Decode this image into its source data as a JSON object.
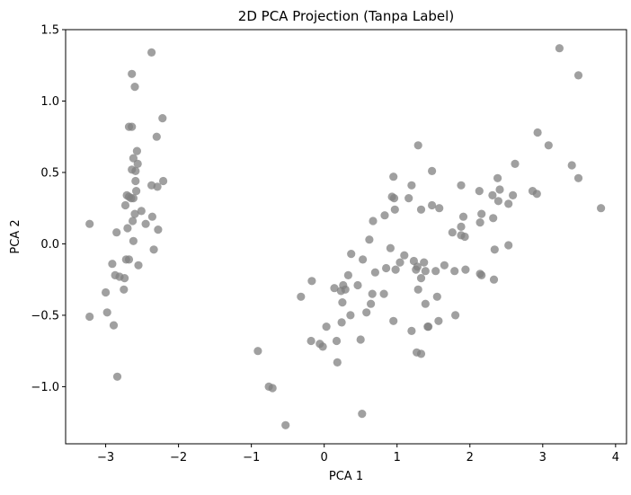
{
  "chart_data": {
    "type": "scatter",
    "title": "2D PCA Projection (Tanpa Label)",
    "xlabel": "PCA 1",
    "ylabel": "PCA 2",
    "xlim": [
      -3.55,
      4.15
    ],
    "ylim": [
      -1.4,
      1.5
    ],
    "xticks": [
      -3,
      -2,
      -1,
      0,
      1,
      2,
      3,
      4
    ],
    "yticks": [
      1.5,
      1.0,
      0.5,
      0.0,
      -0.5,
      -1.0
    ],
    "xtick_labels": [
      "−3",
      "−2",
      "−1",
      "0",
      "1",
      "2",
      "3",
      "4"
    ],
    "ytick_labels": [
      "1.5",
      "1.0",
      "0.5",
      "0.0",
      "−0.5",
      "−1.0"
    ],
    "grid": false,
    "marker_color": "#808080",
    "marker_alpha": 0.75,
    "series": [
      {
        "points": [
          [
            -2.37,
            1.34
          ],
          [
            -2.64,
            1.19
          ],
          [
            -2.6,
            1.1
          ],
          [
            -2.68,
            0.82
          ],
          [
            -2.64,
            0.82
          ],
          [
            -2.22,
            0.88
          ],
          [
            -2.3,
            0.75
          ],
          [
            -2.57,
            0.65
          ],
          [
            -2.62,
            0.6
          ],
          [
            -2.56,
            0.56
          ],
          [
            -2.64,
            0.52
          ],
          [
            -2.59,
            0.51
          ],
          [
            -2.59,
            0.44
          ],
          [
            -2.37,
            0.41
          ],
          [
            -2.29,
            0.4
          ],
          [
            -2.21,
            0.44
          ],
          [
            -2.71,
            0.34
          ],
          [
            -2.68,
            0.33
          ],
          [
            -2.65,
            0.32
          ],
          [
            -2.62,
            0.32
          ],
          [
            -2.58,
            0.37
          ],
          [
            -2.73,
            0.27
          ],
          [
            -2.51,
            0.23
          ],
          [
            -2.6,
            0.21
          ],
          [
            -2.36,
            0.19
          ],
          [
            -2.63,
            0.16
          ],
          [
            -2.28,
            0.1
          ],
          [
            -2.45,
            0.14
          ],
          [
            -2.7,
            0.11
          ],
          [
            -2.85,
            0.08
          ],
          [
            -3.22,
            0.14
          ],
          [
            -2.62,
            0.02
          ],
          [
            -2.34,
            -0.04
          ],
          [
            -2.72,
            -0.11
          ],
          [
            -2.68,
            -0.11
          ],
          [
            -2.91,
            -0.14
          ],
          [
            -2.55,
            -0.15
          ],
          [
            -2.87,
            -0.22
          ],
          [
            -2.81,
            -0.23
          ],
          [
            -2.74,
            -0.24
          ],
          [
            -2.75,
            -0.32
          ],
          [
            -3.0,
            -0.34
          ],
          [
            -2.98,
            -0.48
          ],
          [
            -3.22,
            -0.51
          ],
          [
            -2.89,
            -0.57
          ],
          [
            -2.84,
            -0.93
          ],
          [
            3.23,
            1.37
          ],
          [
            3.49,
            1.18
          ],
          [
            2.93,
            0.78
          ],
          [
            3.08,
            0.69
          ],
          [
            3.4,
            0.55
          ],
          [
            3.49,
            0.46
          ],
          [
            3.8,
            0.25
          ],
          [
            2.62,
            0.56
          ],
          [
            2.38,
            0.46
          ],
          [
            2.86,
            0.37
          ],
          [
            2.92,
            0.35
          ],
          [
            2.59,
            0.34
          ],
          [
            2.41,
            0.38
          ],
          [
            2.31,
            0.34
          ],
          [
            2.13,
            0.37
          ],
          [
            1.88,
            0.41
          ],
          [
            2.53,
            0.28
          ],
          [
            2.39,
            0.3
          ],
          [
            2.16,
            0.21
          ],
          [
            2.32,
            0.18
          ],
          [
            1.91,
            0.19
          ],
          [
            2.14,
            0.15
          ],
          [
            1.88,
            0.12
          ],
          [
            1.76,
            0.08
          ],
          [
            1.88,
            0.06
          ],
          [
            1.93,
            0.05
          ],
          [
            2.53,
            -0.01
          ],
          [
            2.34,
            -0.04
          ],
          [
            2.14,
            -0.21
          ],
          [
            2.16,
            -0.22
          ],
          [
            1.94,
            -0.18
          ],
          [
            2.33,
            -0.25
          ],
          [
            1.79,
            -0.19
          ],
          [
            1.48,
            0.51
          ],
          [
            1.29,
            0.69
          ],
          [
            1.2,
            0.41
          ],
          [
            0.93,
            0.33
          ],
          [
            0.96,
            0.32
          ],
          [
            0.95,
            0.47
          ],
          [
            1.16,
            0.32
          ],
          [
            1.58,
            0.25
          ],
          [
            1.33,
            0.24
          ],
          [
            1.48,
            0.27
          ],
          [
            0.97,
            0.24
          ],
          [
            0.83,
            0.2
          ],
          [
            0.67,
            0.16
          ],
          [
            0.62,
            0.03
          ],
          [
            0.91,
            -0.03
          ],
          [
            1.1,
            -0.08
          ],
          [
            1.23,
            -0.12
          ],
          [
            1.04,
            -0.13
          ],
          [
            1.37,
            -0.13
          ],
          [
            1.28,
            -0.16
          ],
          [
            1.65,
            -0.15
          ],
          [
            1.53,
            -0.19
          ],
          [
            1.26,
            -0.18
          ],
          [
            1.39,
            -0.19
          ],
          [
            0.98,
            -0.18
          ],
          [
            0.85,
            -0.17
          ],
          [
            0.53,
            -0.11
          ],
          [
            0.37,
            -0.07
          ],
          [
            0.7,
            -0.2
          ],
          [
            0.33,
            -0.22
          ],
          [
            0.46,
            -0.29
          ],
          [
            0.26,
            -0.29
          ],
          [
            0.29,
            -0.32
          ],
          [
            0.14,
            -0.31
          ],
          [
            0.23,
            -0.33
          ],
          [
            0.82,
            -0.35
          ],
          [
            0.66,
            -0.35
          ],
          [
            1.33,
            -0.24
          ],
          [
            1.29,
            -0.32
          ],
          [
            1.55,
            -0.37
          ],
          [
            1.39,
            -0.42
          ],
          [
            0.64,
            -0.42
          ],
          [
            0.25,
            -0.41
          ],
          [
            -0.17,
            -0.26
          ],
          [
            -0.32,
            -0.37
          ],
          [
            0.58,
            -0.48
          ],
          [
            1.8,
            -0.5
          ],
          [
            1.57,
            -0.54
          ],
          [
            0.95,
            -0.54
          ],
          [
            0.36,
            -0.5
          ],
          [
            0.24,
            -0.55
          ],
          [
            0.03,
            -0.58
          ],
          [
            -0.18,
            -0.68
          ],
          [
            -0.06,
            -0.7
          ],
          [
            -0.02,
            -0.72
          ],
          [
            0.17,
            -0.68
          ],
          [
            0.5,
            -0.67
          ],
          [
            1.42,
            -0.58
          ],
          [
            1.43,
            -0.58
          ],
          [
            1.2,
            -0.61
          ],
          [
            1.27,
            -0.76
          ],
          [
            1.33,
            -0.77
          ],
          [
            0.18,
            -0.83
          ],
          [
            -0.91,
            -0.75
          ],
          [
            -0.76,
            -1.0
          ],
          [
            -0.71,
            -1.01
          ],
          [
            -0.53,
            -1.27
          ],
          [
            0.52,
            -1.19
          ]
        ]
      }
    ]
  }
}
